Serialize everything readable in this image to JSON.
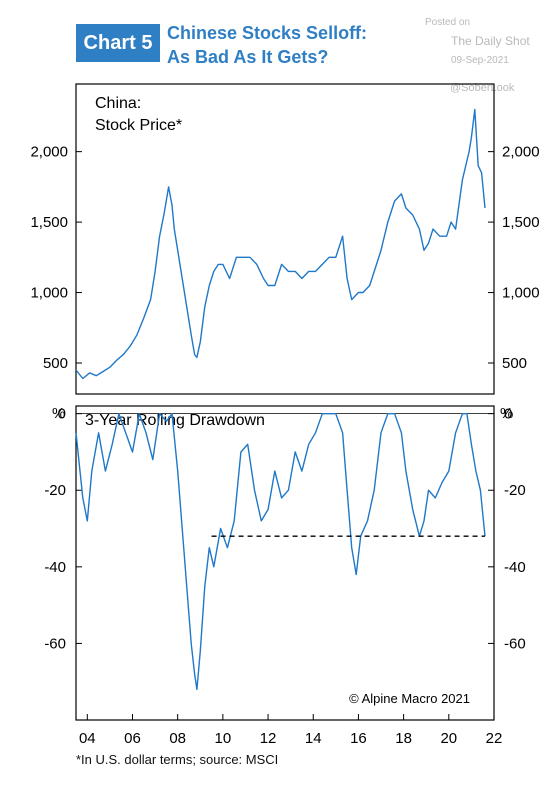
{
  "header": {
    "chart_label": "Chart 5",
    "title_line1": "Chinese Stocks Selloff:",
    "title_line2": "As Bad As It Gets?"
  },
  "watermark": {
    "posted_on": "Posted on",
    "site": "The Daily Shot",
    "date": "09-Sep-2021",
    "handle": "@SoberLook"
  },
  "footnote": "*In U.S. dollar terms; source: MSCI",
  "credit": "© Alpine Macro 2021",
  "colors": {
    "line": "#1f78c8",
    "accent": "#2f7fc4"
  },
  "chart_data": [
    {
      "type": "line",
      "title_line1": "China:",
      "title_line2": "Stock Price*",
      "ylim": [
        280,
        2480
      ],
      "yticks": [
        500,
        1000,
        1500,
        2000
      ],
      "ytick_labels": [
        "500",
        "1,000",
        "1,500",
        "2,000"
      ],
      "xlim": [
        2003.5,
        2022
      ],
      "series": [
        {
          "x": [
            2003.5,
            2003.8,
            2004.1,
            2004.4,
            2004.7,
            2005.0,
            2005.3,
            2005.6,
            2005.9,
            2006.2,
            2006.5,
            2006.8,
            2007.0,
            2007.2,
            2007.4,
            2007.6,
            2007.75,
            2007.85,
            2008.0,
            2008.2,
            2008.4,
            2008.6,
            2008.75,
            2008.85,
            2009.0,
            2009.2,
            2009.4,
            2009.6,
            2009.8,
            2010.0,
            2010.3,
            2010.6,
            2010.9,
            2011.2,
            2011.5,
            2011.8,
            2012.0,
            2012.3,
            2012.6,
            2012.9,
            2013.2,
            2013.5,
            2013.8,
            2014.1,
            2014.4,
            2014.7,
            2015.0,
            2015.3,
            2015.5,
            2015.7,
            2016.0,
            2016.2,
            2016.5,
            2016.8,
            2017.0,
            2017.3,
            2017.6,
            2017.9,
            2018.1,
            2018.4,
            2018.7,
            2018.9,
            2019.1,
            2019.3,
            2019.6,
            2019.9,
            2020.1,
            2020.3,
            2020.6,
            2020.9,
            2021.0,
            2021.15,
            2021.3,
            2021.45,
            2021.6
          ],
          "y": [
            450,
            390,
            430,
            410,
            440,
            470,
            520,
            560,
            620,
            700,
            820,
            950,
            1150,
            1400,
            1560,
            1750,
            1620,
            1450,
            1300,
            1100,
            900,
            700,
            560,
            540,
            650,
            900,
            1050,
            1150,
            1200,
            1200,
            1100,
            1250,
            1250,
            1250,
            1200,
            1100,
            1050,
            1050,
            1200,
            1150,
            1150,
            1100,
            1150,
            1150,
            1200,
            1250,
            1250,
            1400,
            1100,
            950,
            1000,
            1000,
            1050,
            1200,
            1300,
            1500,
            1650,
            1700,
            1600,
            1550,
            1450,
            1300,
            1350,
            1450,
            1400,
            1400,
            1500,
            1450,
            1800,
            2000,
            2100,
            2300,
            1900,
            1850,
            1600
          ]
        }
      ]
    },
    {
      "type": "line",
      "title": "3-Year Rolling Drawdown",
      "ylabel_left": "%",
      "ylabel_right": "%",
      "ylim": [
        -80,
        2
      ],
      "yticks": [
        -60,
        -40,
        -20,
        0
      ],
      "ytick_labels": [
        "-60",
        "-40",
        "-20",
        "0"
      ],
      "xlim": [
        2003.5,
        2022
      ],
      "xticks": [
        2004,
        2006,
        2008,
        2010,
        2012,
        2014,
        2016,
        2018,
        2020,
        2022
      ],
      "xtick_labels": [
        "04",
        "06",
        "08",
        "10",
        "12",
        "14",
        "16",
        "18",
        "20",
        "22"
      ],
      "reference_line": {
        "y": -32,
        "x_start": 2009.5,
        "x_end": 2021.6
      },
      "series": [
        {
          "x": [
            2003.5,
            2003.8,
            2004.0,
            2004.2,
            2004.5,
            2004.8,
            2005.1,
            2005.4,
            2005.7,
            2006.0,
            2006.3,
            2006.6,
            2006.9,
            2007.2,
            2007.5,
            2007.75,
            2008.0,
            2008.2,
            2008.4,
            2008.6,
            2008.75,
            2008.85,
            2009.0,
            2009.2,
            2009.4,
            2009.6,
            2009.9,
            2010.2,
            2010.5,
            2010.8,
            2011.1,
            2011.4,
            2011.7,
            2012.0,
            2012.3,
            2012.6,
            2012.9,
            2013.2,
            2013.5,
            2013.8,
            2014.1,
            2014.4,
            2014.7,
            2015.0,
            2015.3,
            2015.5,
            2015.7,
            2015.9,
            2016.1,
            2016.4,
            2016.7,
            2017.0,
            2017.3,
            2017.6,
            2017.9,
            2018.1,
            2018.4,
            2018.7,
            2018.9,
            2019.1,
            2019.4,
            2019.7,
            2020.0,
            2020.3,
            2020.6,
            2020.8,
            2021.0,
            2021.2,
            2021.4,
            2021.6
          ],
          "y": [
            -5,
            -22,
            -28,
            -15,
            -5,
            -15,
            -8,
            0,
            -5,
            -10,
            0,
            -5,
            -12,
            0,
            -2,
            0,
            -15,
            -30,
            -45,
            -60,
            -68,
            -72,
            -62,
            -45,
            -35,
            -40,
            -30,
            -35,
            -28,
            -10,
            -8,
            -20,
            -28,
            -25,
            -15,
            -22,
            -20,
            -10,
            -15,
            -8,
            -5,
            0,
            0,
            0,
            -5,
            -20,
            -35,
            -42,
            -32,
            -28,
            -20,
            -5,
            0,
            0,
            -5,
            -15,
            -25,
            -32,
            -28,
            -20,
            -22,
            -18,
            -15,
            -5,
            0,
            0,
            -8,
            -15,
            -20,
            -32
          ]
        }
      ]
    }
  ]
}
